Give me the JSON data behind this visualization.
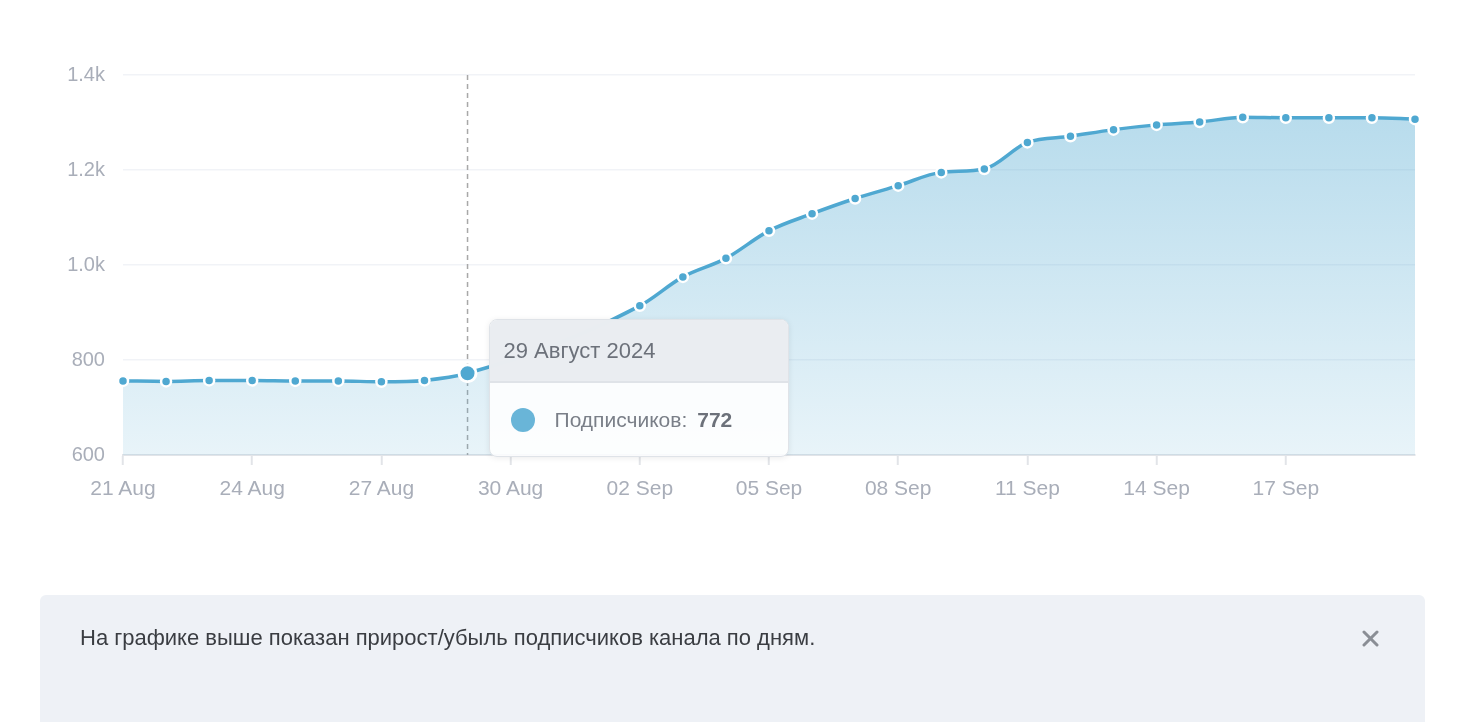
{
  "chart_data": {
    "type": "area",
    "x": [
      "2024-08-21",
      "2024-08-22",
      "2024-08-23",
      "2024-08-24",
      "2024-08-25",
      "2024-08-26",
      "2024-08-27",
      "2024-08-28",
      "2024-08-29",
      "2024-08-30",
      "2024-08-31",
      "2024-09-01",
      "2024-09-02",
      "2024-09-03",
      "2024-09-04",
      "2024-09-05",
      "2024-09-06",
      "2024-09-07",
      "2024-09-08",
      "2024-09-09",
      "2024-09-10",
      "2024-09-11",
      "2024-09-12",
      "2024-09-13",
      "2024-09-14",
      "2024-09-15",
      "2024-09-16",
      "2024-09-17",
      "2024-09-18",
      "2024-09-19",
      "2024-09-20"
    ],
    "values": [
      756,
      755,
      757,
      757,
      756,
      756,
      754,
      757,
      772,
      null,
      null,
      null,
      914,
      975,
      1014,
      1072,
      1108,
      1140,
      1167,
      1195,
      1202,
      1258,
      1271,
      1285,
      1295,
      1301,
      1311,
      1310,
      1310,
      1310,
      1307
    ],
    "color": "#4fa8d1",
    "xlim": [
      "2024-08-21",
      "2024-09-20"
    ],
    "xticks": [
      {
        "value": "2024-08-21",
        "label": "21 Aug"
      },
      {
        "value": "2024-08-24",
        "label": "24 Aug"
      },
      {
        "value": "2024-08-27",
        "label": "27 Aug"
      },
      {
        "value": "2024-08-30",
        "label": "30 Aug"
      },
      {
        "value": "2024-09-02",
        "label": "02 Sep"
      },
      {
        "value": "2024-09-05",
        "label": "05 Sep"
      },
      {
        "value": "2024-09-08",
        "label": "08 Sep"
      },
      {
        "value": "2024-09-11",
        "label": "11 Sep"
      },
      {
        "value": "2024-09-14",
        "label": "14 Sep"
      },
      {
        "value": "2024-09-17",
        "label": "17 Sep"
      }
    ],
    "ylim": [
      600,
      1400
    ],
    "yticks": [
      600,
      800,
      {
        "value": 1000,
        "label": "1.0k"
      },
      {
        "value": 1200,
        "label": "1.2k"
      },
      {
        "value": 1400,
        "label": "1.4k"
      }
    ],
    "grid": "y",
    "marker": "circle",
    "ref_lines": [
      {
        "axis": "x",
        "value": "2024-08-29",
        "color": "#a8a8a8",
        "line_style": "dashed"
      }
    ],
    "annotations": [
      {
        "text": "29 Август 2024",
        "x": "2024-08-29",
        "y": 772
      },
      "Подписчиков: 772",
      "На графике выше показан прирост/убыль подписчиков канала по дням."
    ]
  }
}
